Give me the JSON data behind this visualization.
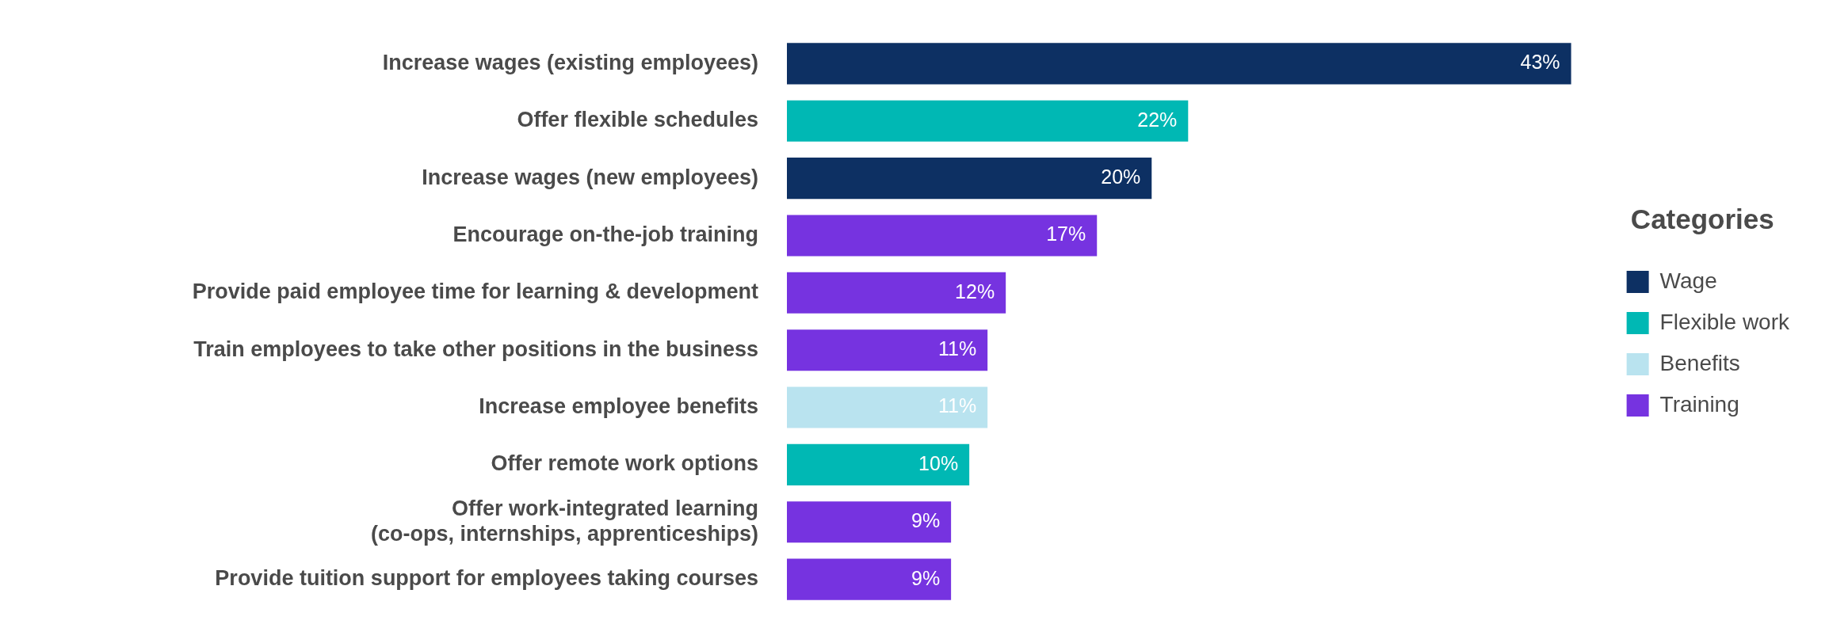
{
  "chart_data": {
    "type": "bar",
    "orientation": "horizontal",
    "stacked": true,
    "legend": "right",
    "legend_title": "Categories",
    "categories": [
      "Increase wages (existing employees)",
      "Offer flexible schedules",
      "Increase wages (new employees)",
      "Encourage on-the-job training",
      "Provide paid employee time for learning & development",
      "Train employees to take other positions in the business",
      "Increase employee benefits",
      "Offer remote work options",
      "Offer work-integrated learning\n(co-ops, internships, apprenticeships)",
      "Provide tuition support for employees taking courses"
    ],
    "series": [
      {
        "name": "Wage",
        "color": "#0d3063",
        "values": [
          43,
          null,
          20,
          null,
          null,
          null,
          null,
          null,
          null,
          null
        ],
        "value_labels": [
          "43%",
          null,
          "20%",
          null,
          null,
          null,
          null,
          null,
          null,
          null
        ]
      },
      {
        "name": "Flexible work",
        "color": "#00b8b4",
        "values": [
          null,
          22,
          null,
          null,
          null,
          null,
          null,
          10,
          null,
          null
        ],
        "value_labels": [
          null,
          "22%",
          null,
          null,
          null,
          null,
          null,
          "10%",
          null,
          null
        ]
      },
      {
        "name": "Benefits",
        "color": "#b9e3ef",
        "values": [
          null,
          null,
          null,
          null,
          null,
          null,
          11,
          null,
          null,
          null
        ],
        "value_labels": [
          null,
          null,
          null,
          null,
          null,
          null,
          "11%",
          null,
          null,
          null
        ]
      },
      {
        "name": "Training",
        "color": "#7633e0",
        "values": [
          null,
          null,
          null,
          17,
          12,
          11,
          null,
          null,
          9,
          9
        ],
        "value_labels": [
          null,
          null,
          null,
          "17%",
          "12%",
          "11%",
          null,
          null,
          "9%",
          "9%"
        ]
      }
    ]
  }
}
